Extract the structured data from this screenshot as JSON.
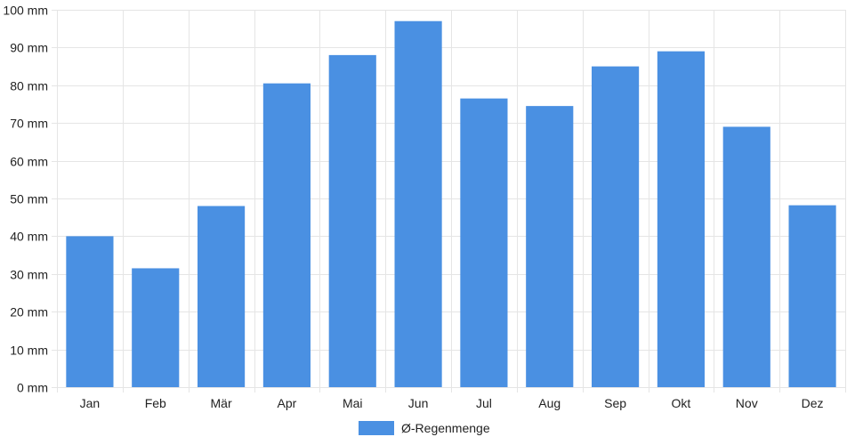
{
  "chart_data": {
    "type": "bar",
    "categories": [
      "Jan",
      "Feb",
      "Mär",
      "Apr",
      "Mai",
      "Jun",
      "Jul",
      "Aug",
      "Sep",
      "Okt",
      "Nov",
      "Dez"
    ],
    "series": [
      {
        "name": "Ø-Regenmenge",
        "values": [
          40,
          31.5,
          48,
          80.5,
          88,
          97,
          76.5,
          74.5,
          85,
          89,
          69,
          48.2
        ]
      }
    ],
    "y_unit": "mm",
    "ylim": [
      0,
      100
    ],
    "y_ticks": [
      0,
      10,
      20,
      30,
      40,
      50,
      60,
      70,
      80,
      90,
      100
    ],
    "y_tick_labels": [
      "0 mm",
      "10 mm",
      "20 mm",
      "30 mm",
      "40 mm",
      "50 mm",
      "60 mm",
      "70 mm",
      "80 mm",
      "90 mm",
      "100 mm"
    ],
    "grid": true,
    "legend_position": "bottom",
    "bar_color": "#4a90e2",
    "grid_color": "#e5e5e5"
  },
  "legend": {
    "label": "Ø-Regenmenge",
    "color": "#4a90e2"
  }
}
